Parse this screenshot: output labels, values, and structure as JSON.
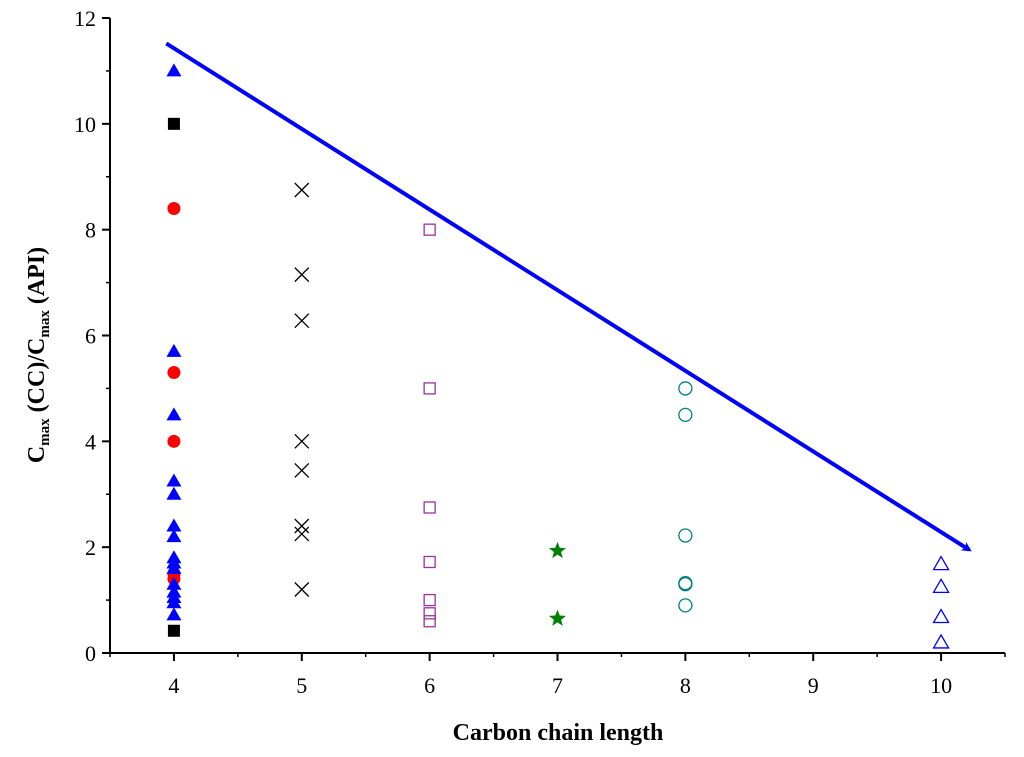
{
  "chart_data": {
    "type": "scatter",
    "title": "",
    "xlabel": "Carbon chain length",
    "ylabel": {
      "parts": [
        {
          "text": "C",
          "sub": false
        },
        {
          "text": "max",
          "sub": true
        },
        {
          "text": " (CC)/C",
          "sub": false
        },
        {
          "text": "max",
          "sub": true
        },
        {
          "text": " (API)",
          "sub": false
        }
      ]
    },
    "xlim": [
      3.5,
      10.5
    ],
    "ylim": [
      0,
      12
    ],
    "x_ticks": [
      4,
      5,
      6,
      7,
      8,
      9,
      10
    ],
    "y_ticks": [
      0,
      2,
      4,
      6,
      8,
      10,
      12
    ],
    "grid": false,
    "legend": "none",
    "series": [
      {
        "marker": "square-filled",
        "color": "#000000",
        "x": [
          4,
          4
        ],
        "y": [
          10.0,
          0.42
        ]
      },
      {
        "marker": "circle-filled",
        "color": "#ff0000",
        "x": [
          4,
          4,
          4,
          4,
          4
        ],
        "y": [
          8.4,
          5.3,
          4.0,
          1.5,
          1.4
        ]
      },
      {
        "marker": "triangle-filled",
        "color": "#0000ff",
        "x": [
          4,
          4,
          4,
          4,
          4,
          4,
          4,
          4,
          4,
          4,
          4,
          4,
          4,
          4,
          4
        ],
        "y": [
          11.0,
          5.7,
          4.5,
          3.25,
          3.0,
          2.4,
          2.2,
          1.8,
          1.7,
          1.6,
          1.3,
          1.15,
          1.05,
          0.95,
          0.72
        ]
      },
      {
        "marker": "x",
        "color": "#000000",
        "x": [
          5,
          5,
          5,
          5,
          5,
          5,
          5,
          5
        ],
        "y": [
          8.75,
          7.15,
          6.28,
          4.0,
          3.45,
          2.4,
          2.25,
          1.2
        ]
      },
      {
        "marker": "square-open",
        "color": "#993399",
        "x": [
          6,
          6,
          6,
          6,
          6,
          6,
          6
        ],
        "y": [
          8.0,
          5.0,
          2.75,
          1.72,
          1.0,
          0.75,
          0.6
        ]
      },
      {
        "marker": "star",
        "color": "#008000",
        "x": [
          7,
          7
        ],
        "y": [
          1.93,
          0.65
        ]
      },
      {
        "marker": "circle-open",
        "color": "#008080",
        "x": [
          8,
          8,
          8,
          8,
          8,
          8
        ],
        "y": [
          5.0,
          4.5,
          2.22,
          1.32,
          1.3,
          0.9
        ]
      },
      {
        "marker": "triangle-open",
        "color": "#0000ff",
        "x": [
          10,
          10,
          10,
          10
        ],
        "y": [
          1.68,
          1.25,
          0.68,
          0.2
        ]
      }
    ],
    "annotations": [
      {
        "type": "arrow",
        "color": "#0000ff",
        "from": [
          3.94,
          11.52
        ],
        "to": [
          10.22,
          1.95
        ]
      }
    ]
  }
}
